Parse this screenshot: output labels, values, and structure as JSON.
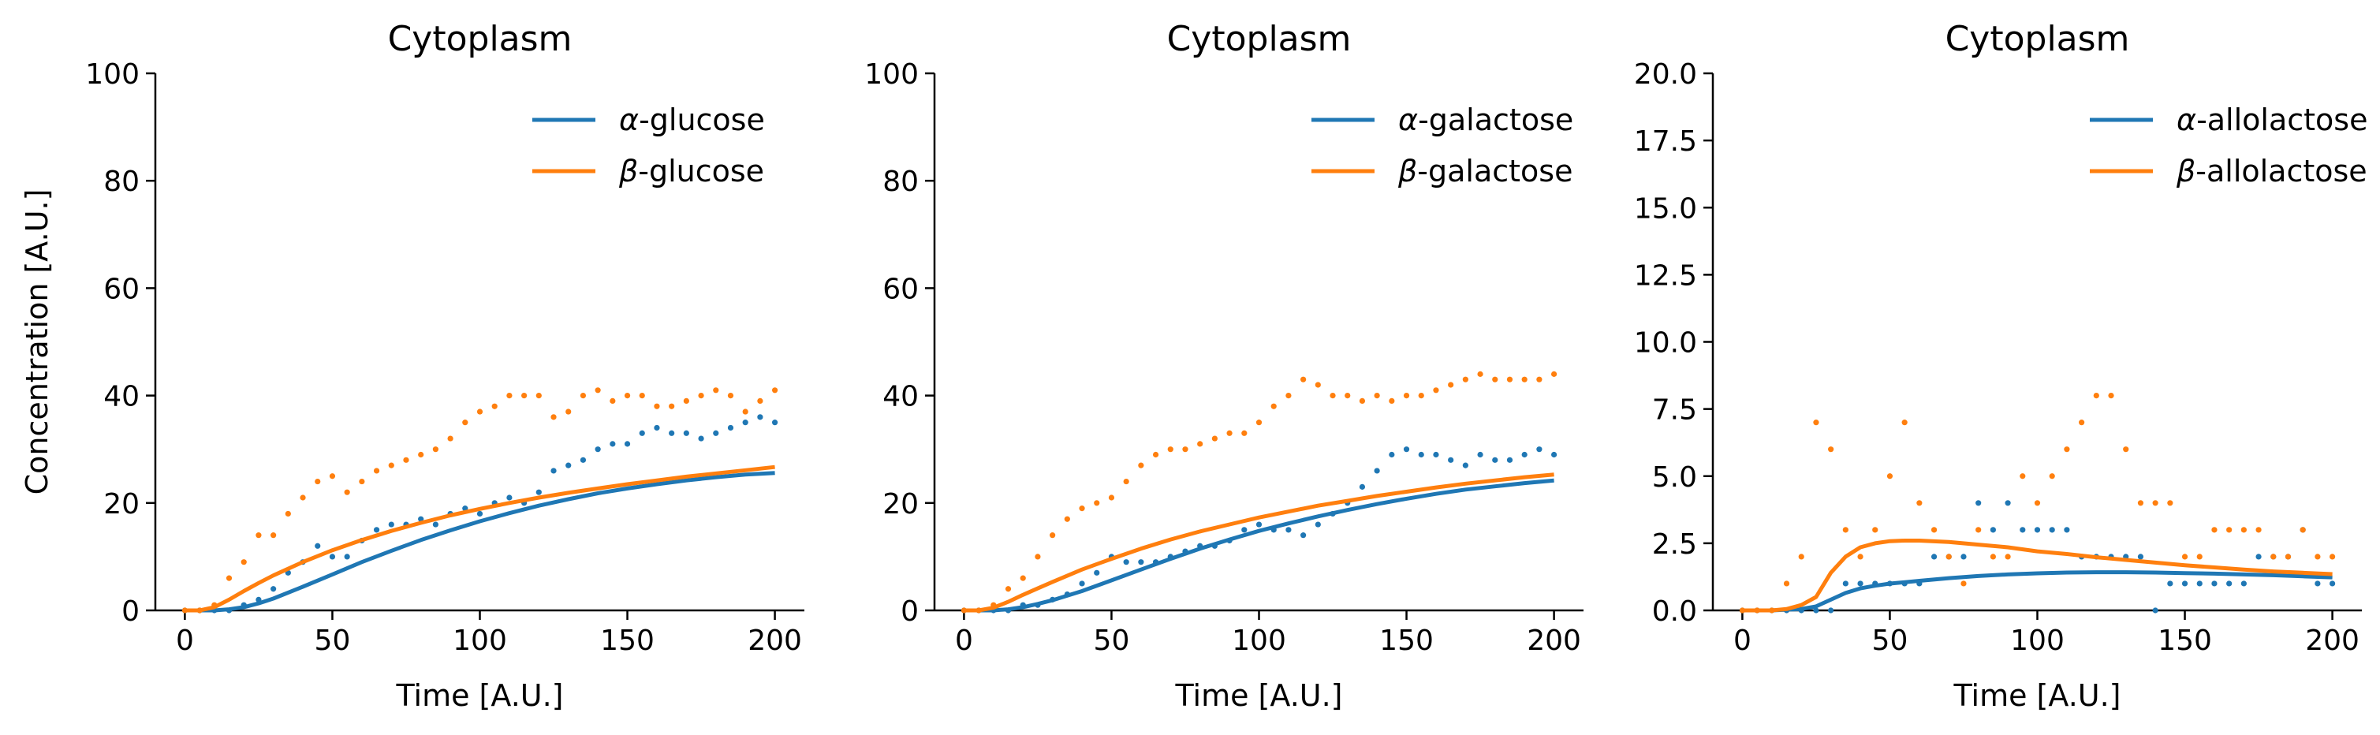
{
  "chart_data": [
    {
      "type": "line+scatter",
      "title": "Cytoplasm",
      "xlabel": "Time [A.U.]",
      "ylabel": "Concentration [A.U.]",
      "xlim": [
        -10,
        210
      ],
      "ylim": [
        0,
        100
      ],
      "xticks": [
        0,
        50,
        100,
        150,
        200
      ],
      "yticks": [
        0,
        20,
        40,
        60,
        80,
        100
      ],
      "ytick_labels": [
        "0",
        "20",
        "40",
        "60",
        "80",
        "100"
      ],
      "grid": false,
      "legend_position": "top-right",
      "series": [
        {
          "name": "α-glucose",
          "legend_greek": "α",
          "legend_rest": "-glucose",
          "color": "#1f77b4",
          "line": {
            "x": [
              0,
              10,
              15,
              20,
              25,
              30,
              40,
              50,
              60,
              70,
              80,
              90,
              100,
              110,
              120,
              130,
              140,
              150,
              160,
              170,
              180,
              190,
              200
            ],
            "y": [
              0,
              0,
              0.2,
              0.6,
              1.3,
              2.2,
              4.4,
              6.7,
              9.0,
              11.1,
              13.1,
              14.9,
              16.6,
              18.1,
              19.5,
              20.7,
              21.8,
              22.7,
              23.5,
              24.2,
              24.8,
              25.3,
              25.6
            ]
          },
          "points": {
            "x": [
              0,
              5,
              10,
              15,
              20,
              25,
              30,
              35,
              40,
              45,
              50,
              55,
              60,
              65,
              70,
              75,
              80,
              85,
              90,
              95,
              100,
              105,
              110,
              115,
              120,
              125,
              130,
              135,
              140,
              145,
              150,
              155,
              160,
              165,
              170,
              175,
              180,
              185,
              190,
              195,
              200
            ],
            "y": [
              0,
              0,
              0,
              0,
              1,
              2,
              4,
              7,
              9,
              12,
              10,
              10,
              13,
              15,
              16,
              16,
              17,
              16,
              18,
              19,
              18,
              20,
              21,
              20,
              22,
              26,
              27,
              28,
              30,
              31,
              31,
              33,
              34,
              33,
              33,
              32,
              33,
              34,
              35,
              36,
              35
            ]
          }
        },
        {
          "name": "β-glucose",
          "legend_greek": "β",
          "legend_rest": "-glucose",
          "color": "#ff7f0e",
          "line": {
            "x": [
              0,
              5,
              10,
              15,
              20,
              25,
              30,
              40,
              50,
              60,
              70,
              80,
              90,
              100,
              110,
              120,
              130,
              140,
              150,
              160,
              170,
              180,
              190,
              200
            ],
            "y": [
              0,
              0,
              0.6,
              2.0,
              3.6,
              5.1,
              6.5,
              9.0,
              11.2,
              13.1,
              14.8,
              16.3,
              17.7,
              18.9,
              20.0,
              21.0,
              21.9,
              22.7,
              23.5,
              24.2,
              24.9,
              25.5,
              26.1,
              26.7
            ]
          },
          "points": {
            "x": [
              0,
              5,
              10,
              15,
              20,
              25,
              30,
              35,
              40,
              45,
              50,
              55,
              60,
              65,
              70,
              75,
              80,
              85,
              90,
              95,
              100,
              105,
              110,
              115,
              120,
              125,
              130,
              135,
              140,
              145,
              150,
              155,
              160,
              165,
              170,
              175,
              180,
              185,
              190,
              195,
              200
            ],
            "y": [
              0,
              0,
              1,
              6,
              9,
              14,
              14,
              18,
              21,
              24,
              25,
              22,
              24,
              26,
              27,
              28,
              29,
              30,
              32,
              35,
              37,
              38,
              40,
              40,
              40,
              36,
              37,
              40,
              41,
              39,
              40,
              40,
              38,
              38,
              39,
              40,
              41,
              40,
              37,
              39,
              41
            ]
          }
        }
      ]
    },
    {
      "type": "line+scatter",
      "title": "Cytoplasm",
      "xlabel": "Time [A.U.]",
      "ylabel": "",
      "xlim": [
        -10,
        210
      ],
      "ylim": [
        0,
        100
      ],
      "xticks": [
        0,
        50,
        100,
        150,
        200
      ],
      "yticks": [
        0,
        20,
        40,
        60,
        80,
        100
      ],
      "ytick_labels": [
        "0",
        "20",
        "40",
        "60",
        "80",
        "100"
      ],
      "grid": false,
      "legend_position": "top-right",
      "series": [
        {
          "name": "α-galactose",
          "legend_greek": "α",
          "legend_rest": "-galactose",
          "color": "#1f77b4",
          "line": {
            "x": [
              0,
              10,
              15,
              20,
              25,
              30,
              40,
              50,
              60,
              70,
              80,
              90,
              100,
              110,
              120,
              130,
              140,
              150,
              160,
              170,
              180,
              190,
              200
            ],
            "y": [
              0,
              0,
              0.2,
              0.6,
              1.2,
              1.9,
              3.6,
              5.6,
              7.6,
              9.6,
              11.5,
              13.2,
              14.8,
              16.2,
              17.5,
              18.7,
              19.8,
              20.8,
              21.7,
              22.5,
              23.1,
              23.7,
              24.2
            ]
          },
          "points": {
            "x": [
              0,
              5,
              10,
              15,
              20,
              25,
              30,
              35,
              40,
              45,
              50,
              55,
              60,
              65,
              70,
              75,
              80,
              85,
              90,
              95,
              100,
              105,
              110,
              115,
              120,
              125,
              130,
              135,
              140,
              145,
              150,
              155,
              160,
              165,
              170,
              175,
              180,
              185,
              190,
              195,
              200
            ],
            "y": [
              0,
              0,
              0,
              0,
              1,
              1,
              2,
              3,
              5,
              7,
              10,
              9,
              9,
              9,
              10,
              11,
              12,
              12,
              13,
              15,
              16,
              15,
              15,
              14,
              16,
              18,
              20,
              23,
              26,
              29,
              30,
              29,
              29,
              28,
              27,
              29,
              28,
              28,
              29,
              30,
              29
            ]
          }
        },
        {
          "name": "β-galactose",
          "legend_greek": "β",
          "legend_rest": "-galactose",
          "color": "#ff7f0e",
          "line": {
            "x": [
              0,
              5,
              10,
              15,
              20,
              25,
              30,
              40,
              50,
              60,
              70,
              80,
              90,
              100,
              110,
              120,
              130,
              140,
              150,
              160,
              170,
              180,
              190,
              200
            ],
            "y": [
              0,
              0,
              0.5,
              1.6,
              2.9,
              4.1,
              5.3,
              7.6,
              9.6,
              11.5,
              13.2,
              14.7,
              16.0,
              17.3,
              18.4,
              19.5,
              20.4,
              21.3,
              22.1,
              22.9,
              23.6,
              24.2,
              24.8,
              25.3
            ]
          },
          "points": {
            "x": [
              0,
              5,
              10,
              15,
              20,
              25,
              30,
              35,
              40,
              45,
              50,
              55,
              60,
              65,
              70,
              75,
              80,
              85,
              90,
              95,
              100,
              105,
              110,
              115,
              120,
              125,
              130,
              135,
              140,
              145,
              150,
              155,
              160,
              165,
              170,
              175,
              180,
              185,
              190,
              195,
              200
            ],
            "y": [
              0,
              0,
              1,
              4,
              6,
              10,
              14,
              17,
              19,
              20,
              21,
              24,
              27,
              29,
              30,
              30,
              31,
              32,
              33,
              33,
              35,
              38,
              40,
              43,
              42,
              40,
              40,
              39,
              40,
              39,
              40,
              40,
              41,
              42,
              43,
              44,
              43,
              43,
              43,
              43,
              44
            ]
          }
        }
      ]
    },
    {
      "type": "line+scatter",
      "title": "Cytoplasm",
      "xlabel": "Time [A.U.]",
      "ylabel": "",
      "xlim": [
        -10,
        210
      ],
      "ylim": [
        0,
        20
      ],
      "xticks": [
        0,
        50,
        100,
        150,
        200
      ],
      "yticks": [
        0,
        2.5,
        5,
        7.5,
        10,
        12.5,
        15,
        17.5,
        20
      ],
      "ytick_labels": [
        "0.0",
        "2.5",
        "5.0",
        "7.5",
        "10.0",
        "12.5",
        "15.0",
        "17.5",
        "20.0"
      ],
      "grid": false,
      "legend_position": "top-right",
      "series": [
        {
          "name": "α-allolactose",
          "legend_greek": "α",
          "legend_rest": "-allolactose",
          "color": "#1f77b4",
          "line": {
            "x": [
              0,
              10,
              20,
              25,
              30,
              35,
              40,
              45,
              50,
              60,
              70,
              80,
              90,
              100,
              110,
              120,
              130,
              140,
              150,
              160,
              170,
              180,
              190,
              200
            ],
            "y": [
              0,
              0,
              0.05,
              0.15,
              0.4,
              0.65,
              0.82,
              0.92,
              1.0,
              1.1,
              1.2,
              1.28,
              1.34,
              1.38,
              1.41,
              1.42,
              1.42,
              1.41,
              1.39,
              1.37,
              1.34,
              1.31,
              1.27,
              1.23
            ]
          },
          "points": {
            "x": [
              0,
              5,
              10,
              15,
              20,
              25,
              30,
              35,
              40,
              45,
              50,
              55,
              60,
              65,
              70,
              75,
              80,
              85,
              90,
              95,
              100,
              105,
              110,
              115,
              120,
              125,
              130,
              135,
              140,
              145,
              150,
              155,
              160,
              165,
              170,
              175,
              180,
              185,
              190,
              195,
              200
            ],
            "y": [
              0,
              0,
              0,
              0,
              0,
              0,
              0,
              1,
              1,
              1,
              1,
              1,
              1,
              2,
              2,
              2,
              4,
              3,
              4,
              3,
              3,
              3,
              3,
              2,
              2,
              2,
              2,
              2,
              0,
              1,
              1,
              1,
              1,
              1,
              1,
              2,
              2,
              2,
              3,
              1,
              1
            ]
          }
        },
        {
          "name": "β-allolactose",
          "legend_greek": "β",
          "legend_rest": "-allolactose",
          "color": "#ff7f0e",
          "line": {
            "x": [
              0,
              10,
              15,
              20,
              25,
              30,
              35,
              40,
              45,
              50,
              55,
              60,
              70,
              80,
              90,
              100,
              110,
              120,
              130,
              140,
              150,
              160,
              170,
              180,
              190,
              200
            ],
            "y": [
              0,
              0,
              0.05,
              0.2,
              0.5,
              1.4,
              2.0,
              2.35,
              2.5,
              2.58,
              2.6,
              2.6,
              2.55,
              2.45,
              2.35,
              2.2,
              2.1,
              1.98,
              1.88,
              1.78,
              1.68,
              1.6,
              1.52,
              1.45,
              1.4,
              1.35
            ]
          },
          "points": {
            "x": [
              0,
              5,
              10,
              15,
              20,
              25,
              30,
              35,
              40,
              45,
              50,
              55,
              60,
              65,
              70,
              75,
              80,
              85,
              90,
              95,
              100,
              105,
              110,
              115,
              120,
              125,
              130,
              135,
              140,
              145,
              150,
              155,
              160,
              165,
              170,
              175,
              180,
              185,
              190,
              195,
              200
            ],
            "y": [
              0,
              0,
              0,
              1,
              2,
              7,
              6,
              3,
              2,
              3,
              5,
              7,
              4,
              3,
              2,
              1,
              3,
              2,
              2,
              5,
              4,
              5,
              6,
              7,
              8,
              8,
              6,
              4,
              4,
              4,
              2,
              2,
              3,
              3,
              3,
              3,
              2,
              2,
              3,
              2,
              2
            ]
          }
        }
      ]
    }
  ]
}
